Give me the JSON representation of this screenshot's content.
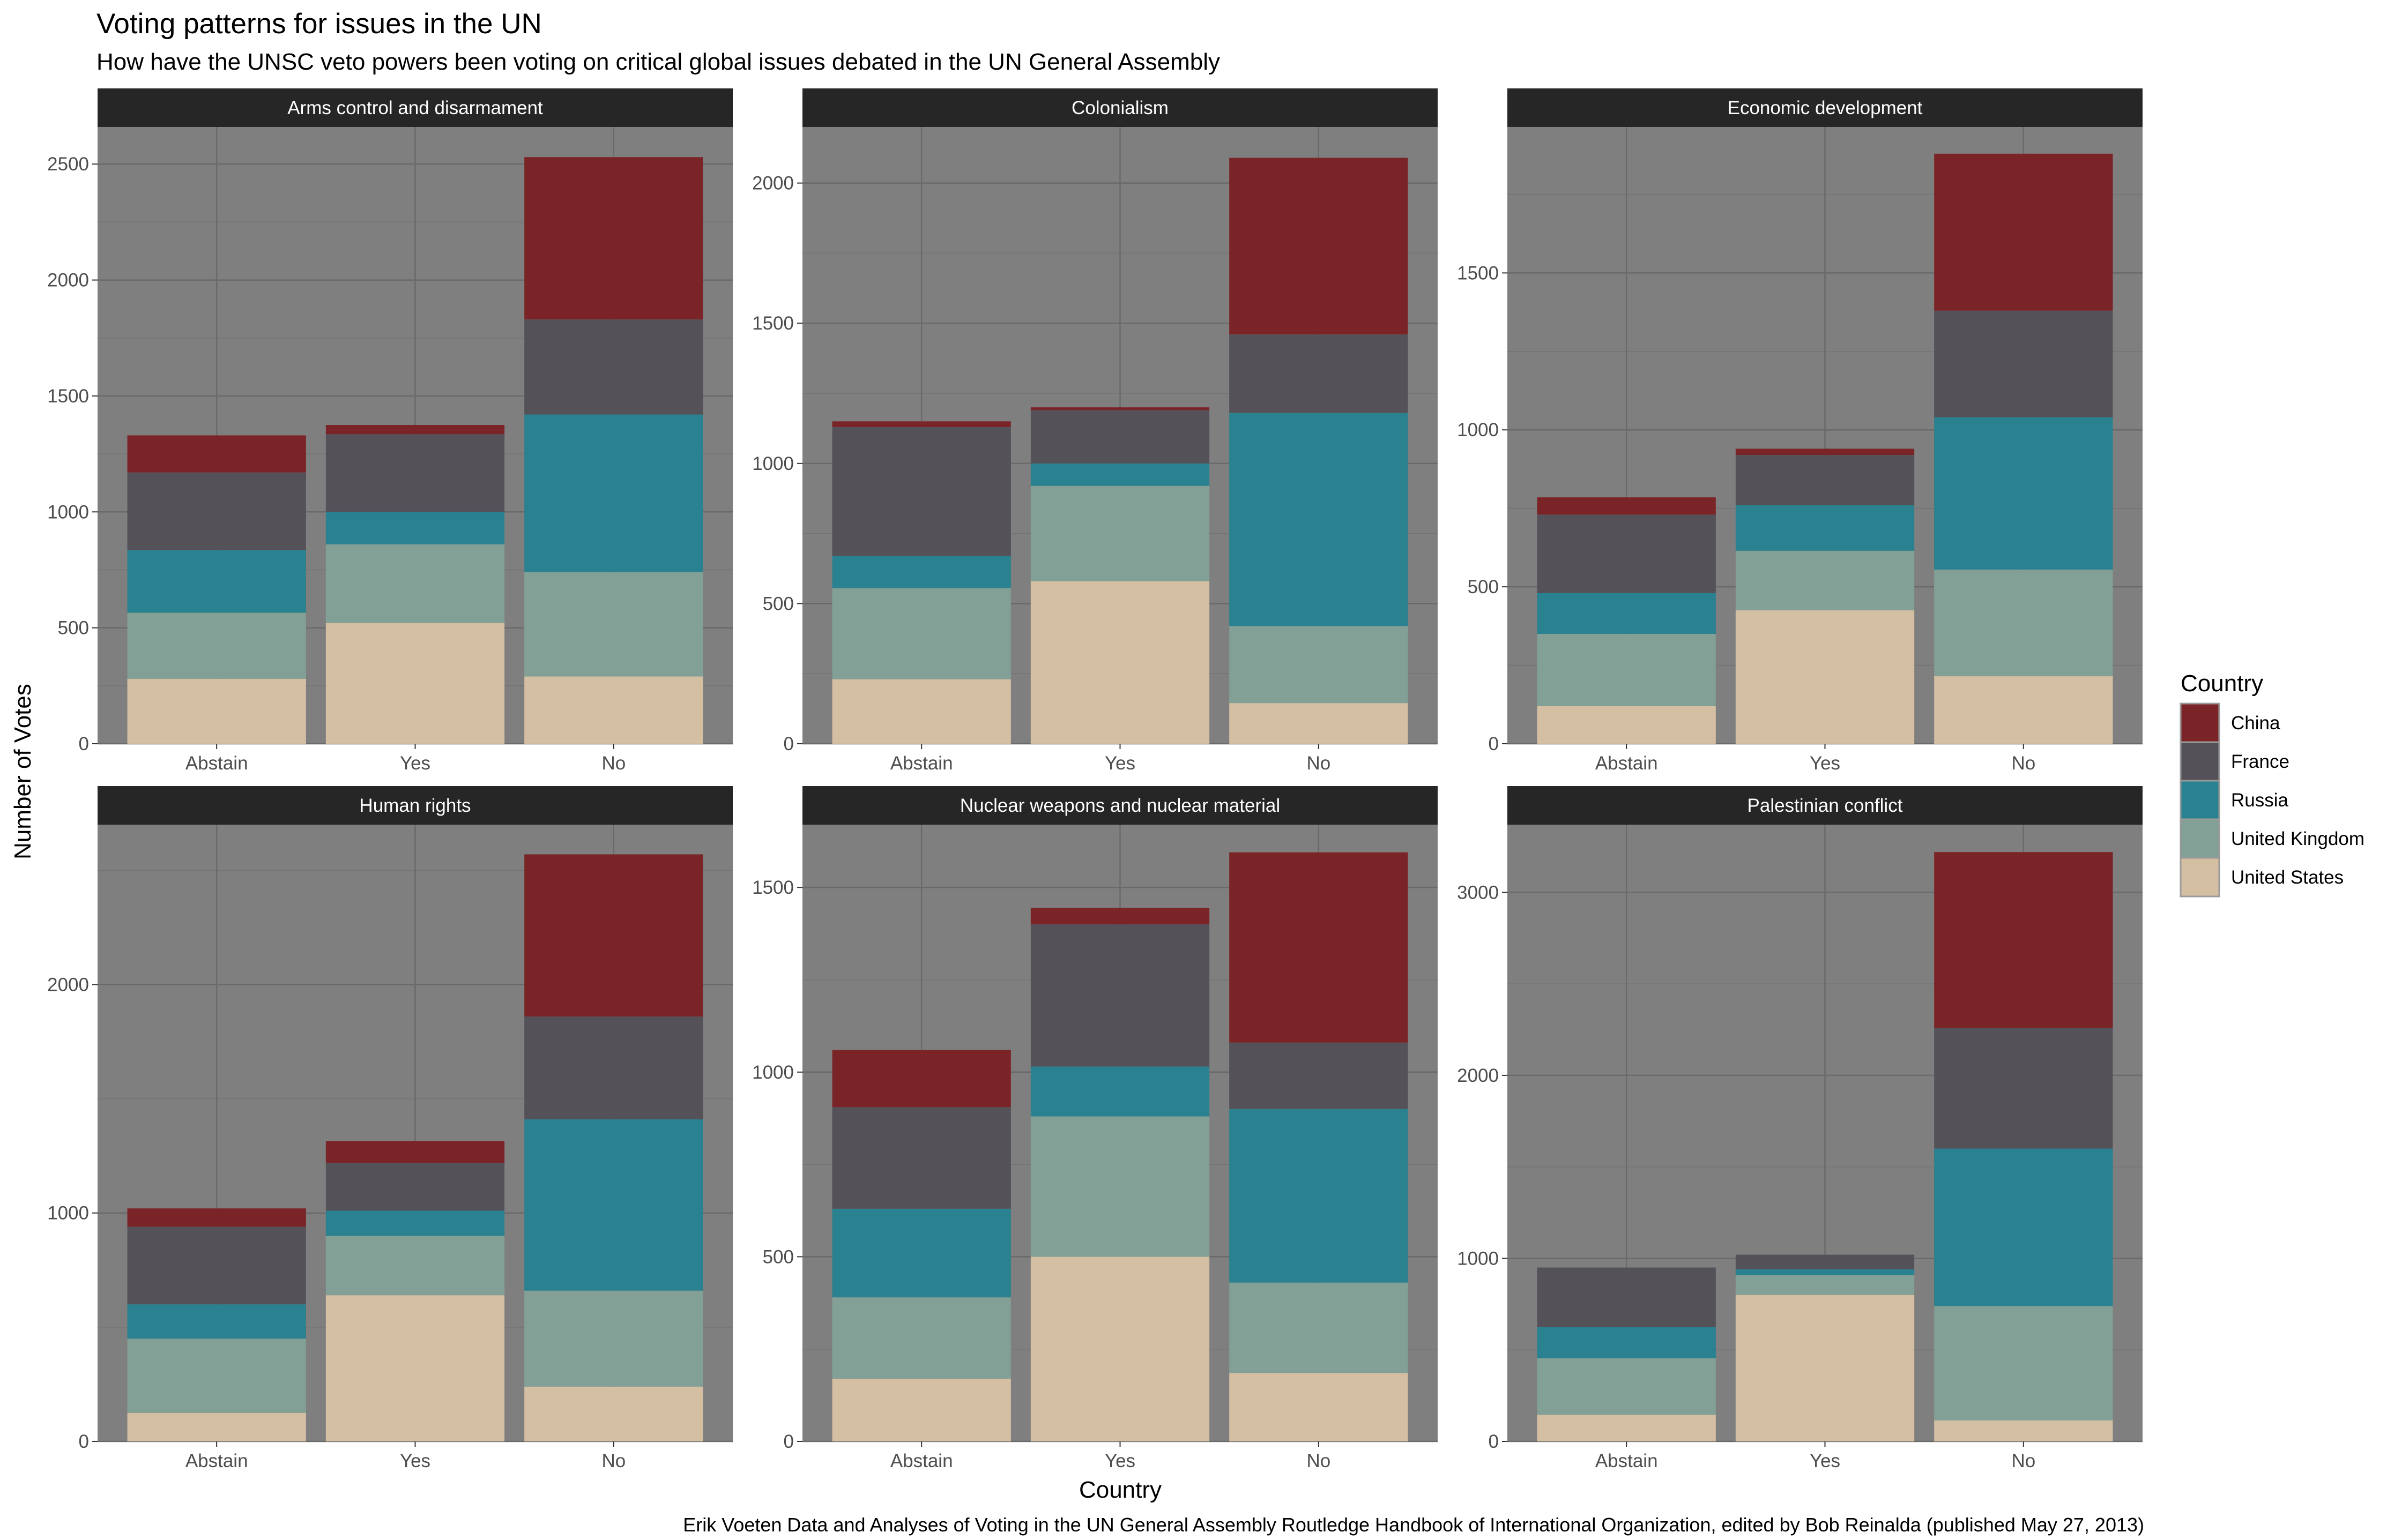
{
  "chart_data": {
    "type": "bar",
    "stacked": true,
    "title": "Voting patterns for issues in the UN",
    "subtitle": "How have the UNSC veto powers been voting on critical global issues debated in the UN General Assembly",
    "caption": "Erik Voeten Data and Analyses of Voting in the UN General Assembly Routledge Handbook of International Organization, edited by Bob Reinalda (published May 27, 2013)",
    "xlabel": "Country",
    "ylabel": "Number of Votes",
    "grid": true,
    "legend": {
      "title": "Country",
      "position": "right",
      "entries": [
        {
          "name": "China",
          "color": "#7b2428"
        },
        {
          "name": "France",
          "color": "#545159"
        },
        {
          "name": "Russia",
          "color": "#2a818f"
        },
        {
          "name": "United Kingdom",
          "color": "#82a096"
        },
        {
          "name": "United States",
          "color": "#d4bfa3"
        }
      ]
    },
    "categories": [
      "Abstain",
      "Yes",
      "No"
    ],
    "stack_order": [
      "United States",
      "United Kingdom",
      "Russia",
      "France",
      "China"
    ],
    "facets": [
      {
        "title": "Arms control and disarmament",
        "ylim": [
          0,
          2660
        ],
        "yticks": [
          0,
          500,
          1000,
          1500,
          2000,
          2500
        ],
        "series": [
          {
            "name": "United States",
            "values": [
              280,
              520,
              290
            ]
          },
          {
            "name": "United Kingdom",
            "values": [
              285,
              340,
              450
            ]
          },
          {
            "name": "Russia",
            "values": [
              270,
              140,
              680
            ]
          },
          {
            "name": "France",
            "values": [
              335,
              335,
              410
            ]
          },
          {
            "name": "China",
            "values": [
              160,
              40,
              700
            ]
          }
        ]
      },
      {
        "title": "Colonialism",
        "ylim": [
          0,
          2200
        ],
        "yticks": [
          0,
          500,
          1000,
          1500,
          2000
        ],
        "series": [
          {
            "name": "United States",
            "values": [
              230,
              580,
              145
            ]
          },
          {
            "name": "United Kingdom",
            "values": [
              325,
              340,
              275
            ]
          },
          {
            "name": "Russia",
            "values": [
              115,
              80,
              760
            ]
          },
          {
            "name": "France",
            "values": [
              460,
              190,
              280
            ]
          },
          {
            "name": "China",
            "values": [
              20,
              10,
              630
            ]
          }
        ]
      },
      {
        "title": "Economic development",
        "ylim": [
          0,
          1965
        ],
        "yticks": [
          0,
          500,
          1000,
          1500
        ],
        "series": [
          {
            "name": "United States",
            "values": [
              120,
              425,
              215
            ]
          },
          {
            "name": "United Kingdom",
            "values": [
              230,
              190,
              340
            ]
          },
          {
            "name": "Russia",
            "values": [
              130,
              145,
              485
            ]
          },
          {
            "name": "France",
            "values": [
              250,
              160,
              340
            ]
          },
          {
            "name": "China",
            "values": [
              55,
              20,
              500
            ]
          }
        ]
      },
      {
        "title": "Human rights",
        "ylim": [
          0,
          2700
        ],
        "yticks": [
          0,
          1000,
          2000
        ],
        "series": [
          {
            "name": "United States",
            "values": [
              125,
              640,
              240
            ]
          },
          {
            "name": "United Kingdom",
            "values": [
              325,
              260,
              420
            ]
          },
          {
            "name": "Russia",
            "values": [
              150,
              110,
              750
            ]
          },
          {
            "name": "France",
            "values": [
              340,
              210,
              450
            ]
          },
          {
            "name": "China",
            "values": [
              80,
              95,
              710
            ]
          }
        ]
      },
      {
        "title": "Nuclear weapons and nuclear material",
        "ylim": [
          0,
          1670
        ],
        "yticks": [
          0,
          500,
          1000,
          1500
        ],
        "series": [
          {
            "name": "United States",
            "values": [
              170,
              500,
              185
            ]
          },
          {
            "name": "United Kingdom",
            "values": [
              220,
              380,
              245
            ]
          },
          {
            "name": "Russia",
            "values": [
              240,
              135,
              470
            ]
          },
          {
            "name": "France",
            "values": [
              275,
              385,
              180
            ]
          },
          {
            "name": "China",
            "values": [
              155,
              45,
              515
            ]
          }
        ]
      },
      {
        "title": "Palestinian conflict",
        "ylim": [
          0,
          3370
        ],
        "yticks": [
          0,
          1000,
          2000,
          3000
        ],
        "series": [
          {
            "name": "United States",
            "values": [
              145,
              800,
              115
            ]
          },
          {
            "name": "United Kingdom",
            "values": [
              310,
              110,
              625
            ]
          },
          {
            "name": "Russia",
            "values": [
              170,
              30,
              860
            ]
          },
          {
            "name": "France",
            "values": [
              325,
              80,
              660
            ]
          },
          {
            "name": "China",
            "values": [
              0,
              0,
              960
            ]
          }
        ]
      }
    ]
  }
}
